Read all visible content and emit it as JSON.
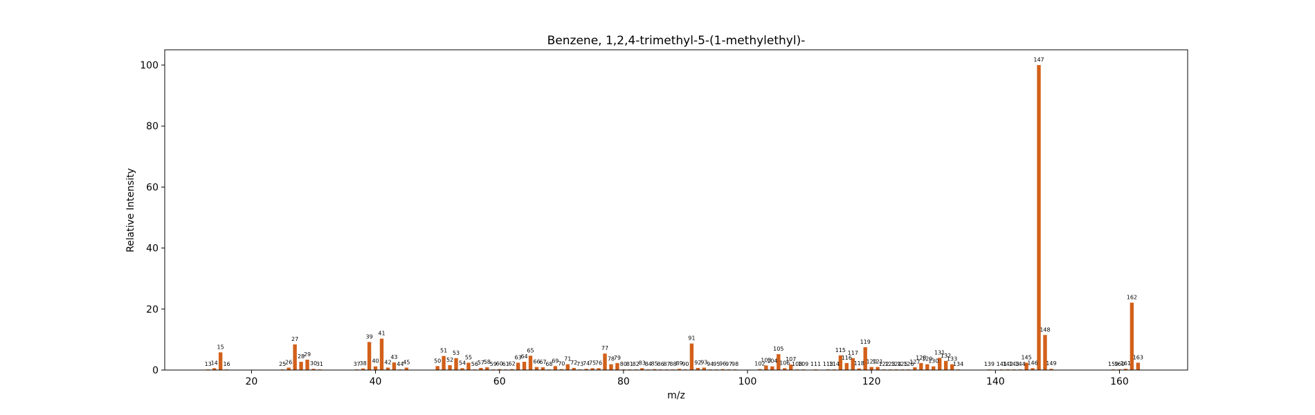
{
  "chart_data": {
    "type": "bar",
    "title": "Benzene, 1,2,4-trimethyl-5-(1-methylethyl)-",
    "xlabel": "m/z",
    "ylabel": "Relative Intensity",
    "xlim": [
      6,
      171
    ],
    "ylim": [
      0,
      105
    ],
    "xticks": [
      20,
      40,
      60,
      80,
      100,
      120,
      140,
      160
    ],
    "yticks": [
      0,
      20,
      40,
      60,
      80,
      100
    ],
    "bar_color": "#d2601a",
    "grid": false,
    "x": [
      13,
      14,
      15,
      16,
      25,
      26,
      27,
      28,
      29,
      30,
      31,
      37,
      38,
      39,
      40,
      41,
      42,
      43,
      44,
      45,
      50,
      51,
      52,
      53,
      54,
      55,
      56,
      57,
      58,
      59,
      60,
      61,
      62,
      63,
      64,
      65,
      66,
      67,
      68,
      69,
      70,
      71,
      72,
      73,
      74,
      75,
      76,
      77,
      78,
      79,
      80,
      81,
      82,
      83,
      84,
      85,
      86,
      87,
      88,
      89,
      90,
      91,
      92,
      93,
      94,
      95,
      96,
      97,
      98,
      102,
      103,
      104,
      105,
      106,
      107,
      108,
      109,
      111,
      113,
      114,
      115,
      116,
      117,
      118,
      119,
      120,
      121,
      122,
      123,
      124,
      125,
      126,
      127,
      128,
      129,
      130,
      131,
      132,
      133,
      134,
      139,
      141,
      142,
      143,
      144,
      145,
      146,
      147,
      148,
      149,
      159,
      160,
      161,
      162,
      163
    ],
    "values": [
      0.2,
      0.6,
      5.8,
      0.2,
      0.2,
      0.8,
      8.4,
      2.7,
      3.4,
      0.4,
      0.2,
      0.2,
      0.5,
      9.2,
      1.2,
      10.3,
      0.8,
      2.5,
      0.2,
      0.8,
      1.3,
      4.6,
      1.6,
      3.9,
      0.6,
      2.4,
      0.2,
      0.7,
      0.9,
      0.2,
      0.3,
      0.2,
      0.3,
      2.4,
      2.7,
      4.7,
      1.0,
      0.9,
      0.2,
      1.3,
      0.3,
      1.9,
      0.7,
      0.2,
      0.4,
      0.6,
      0.6,
      5.4,
      1.9,
      2.3,
      0.2,
      0.2,
      0.2,
      0.6,
      0.2,
      0.3,
      0.2,
      0.2,
      0.2,
      0.4,
      0.2,
      8.7,
      0.7,
      0.8,
      0.2,
      0.2,
      0.3,
      0.2,
      0.2,
      0.3,
      1.5,
      1.2,
      5.2,
      0.6,
      1.8,
      0.2,
      0.2,
      0.2,
      0.2,
      0.2,
      4.8,
      2.3,
      3.9,
      0.5,
      7.5,
      1.0,
      1.0,
      0.2,
      0.2,
      0.2,
      0.2,
      0.2,
      0.9,
      2.3,
      1.9,
      1.2,
      4.0,
      3.0,
      1.9,
      0.2,
      0.2,
      0.2,
      0.2,
      0.2,
      0.2,
      2.4,
      0.6,
      100,
      11.5,
      0.4,
      0.2,
      0.2,
      0.4,
      22.1,
      2.4
    ]
  }
}
